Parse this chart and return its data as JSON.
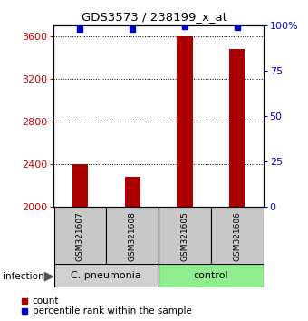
{
  "title": "GDS3573 / 238199_x_at",
  "samples": [
    "GSM321607",
    "GSM321608",
    "GSM321605",
    "GSM321606"
  ],
  "counts": [
    2400,
    2280,
    3600,
    3480
  ],
  "percentiles": [
    98,
    98,
    99.5,
    99
  ],
  "groups": [
    {
      "label": "C. pneumonia",
      "samples": [
        0,
        1
      ],
      "color": "#c8e6c8"
    },
    {
      "label": "control",
      "samples": [
        2,
        3
      ],
      "color": "#90ee90"
    }
  ],
  "ylim_left": [
    2000,
    3700
  ],
  "ylim_right": [
    0,
    100
  ],
  "yticks_left": [
    2000,
    2400,
    2800,
    3200,
    3600
  ],
  "yticks_right": [
    0,
    25,
    50,
    75,
    100
  ],
  "bar_color": "#aa0000",
  "dot_color": "#0000cc",
  "left_axis_color": "#cc0000",
  "right_axis_color": "#0000cc",
  "infection_label": "infection",
  "legend_count": "count",
  "legend_percentile": "percentile rank within the sample",
  "bar_width": 0.3,
  "sample_box_color": "#c8c8c8",
  "group1_color": "#d0d0d0"
}
